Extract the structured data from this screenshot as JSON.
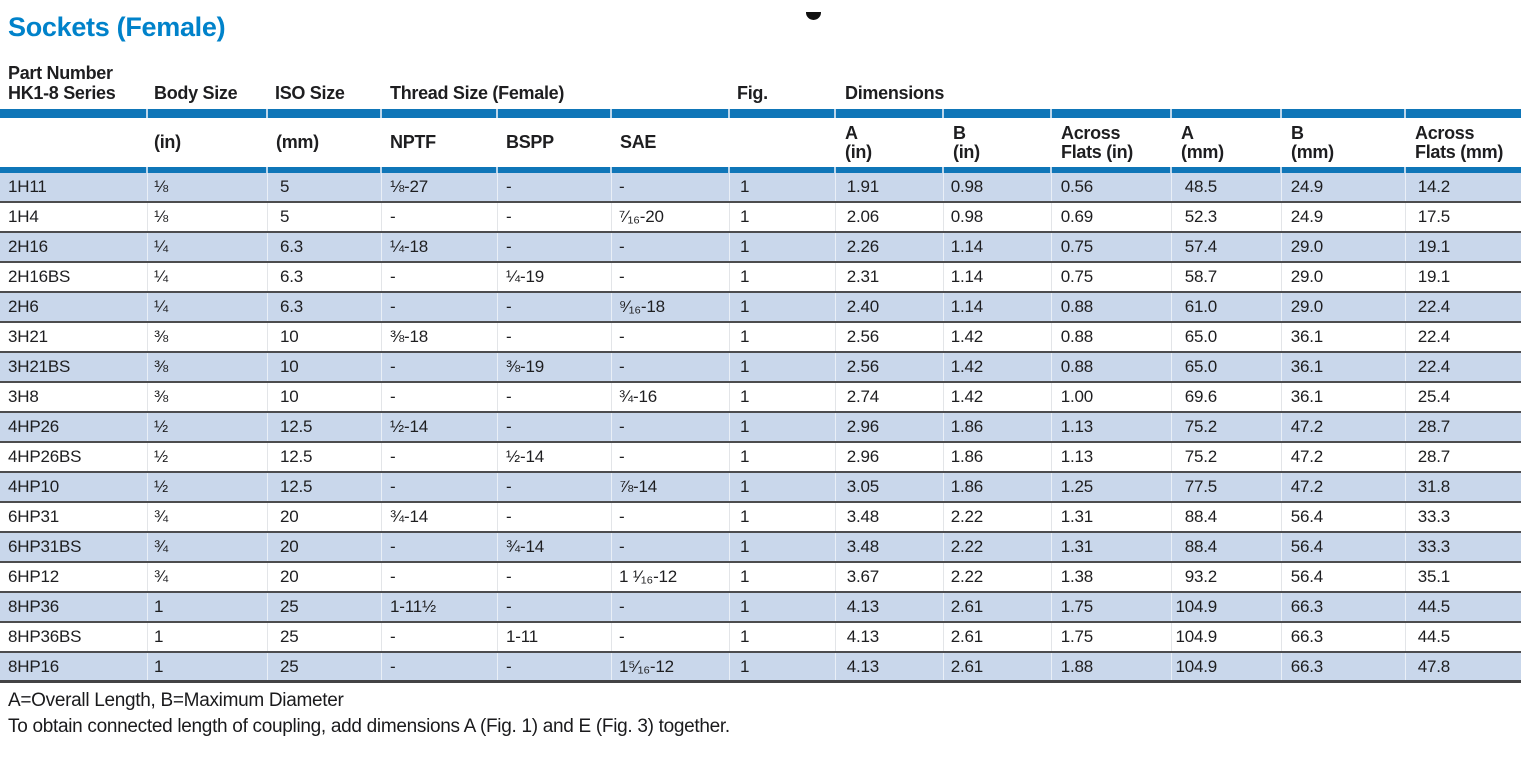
{
  "page": {
    "title": "Sockets (Female)",
    "footnotes": [
      "A=Overall Length, B=Maximum Diameter",
      "To obtain connected length of coupling, add dimensions A (Fig. 1) and E (Fig. 3) together."
    ]
  },
  "colors": {
    "title_blue": "#0082ca",
    "rule_blue": "#0f76b8",
    "row_stripe_blue": "#c9d7eb",
    "row_divider_gray": "#4c4c4e"
  },
  "table": {
    "col_keys": [
      "part-number",
      "body-size",
      "iso-size",
      "nptf",
      "bspp",
      "sae",
      "fig",
      "a-in",
      "b-in",
      "across-flats-in",
      "a-mm",
      "b-mm",
      "across-flats-mm"
    ],
    "col_classes": [
      "c-part",
      "c-body",
      "c-iso",
      "c-nptf",
      "c-bspp",
      "c-sae",
      "c-fig",
      "c-ain",
      "c-bin",
      "c-afin",
      "c-amm",
      "c-bmm",
      "c-afmm"
    ],
    "group_headers": [
      {
        "key": "part-number",
        "label": "Part Number\nHK1-8 Series",
        "span": 1
      },
      {
        "key": "body-size",
        "label": "Body Size",
        "span": 1
      },
      {
        "key": "iso-size",
        "label": "ISO Size",
        "span": 1
      },
      {
        "key": "thread-size",
        "label": "Thread Size (Female)",
        "span": 3
      },
      {
        "key": "fig",
        "label": "Fig.",
        "span": 1
      },
      {
        "key": "dimensions",
        "label": "Dimensions",
        "span": 6
      }
    ],
    "sub_headers": [
      "",
      "(in)",
      "(mm)",
      "NPTF",
      "BSPP",
      "SAE",
      "",
      "A\n(in)",
      "B\n(in)",
      "Across\nFlats (in)",
      "A\n(mm)",
      "B\n(mm)",
      "Across\nFlats (mm)"
    ],
    "rows": [
      [
        "1H11",
        "⅛",
        "5",
        "⅛-27",
        "-",
        "-",
        "1",
        "1.91",
        "0.98",
        "0.56",
        "48.5",
        "24.9",
        "14.2"
      ],
      [
        "1H4",
        "⅛",
        "5",
        "-",
        "-",
        "⁷⁄₁₆-20",
        "1",
        "2.06",
        "0.98",
        "0.69",
        "52.3",
        "24.9",
        "17.5"
      ],
      [
        "2H16",
        "¼",
        "6.3",
        "¼-18",
        "-",
        "-",
        "1",
        "2.26",
        "1.14",
        "0.75",
        "57.4",
        "29.0",
        "19.1"
      ],
      [
        "2H16BS",
        "¼",
        "6.3",
        "-",
        "¼-19",
        "-",
        "1",
        "2.31",
        "1.14",
        "0.75",
        "58.7",
        "29.0",
        "19.1"
      ],
      [
        "2H6",
        "¼",
        "6.3",
        "-",
        "-",
        "⁹⁄₁₆-18",
        "1",
        "2.40",
        "1.14",
        "0.88",
        "61.0",
        "29.0",
        "22.4"
      ],
      [
        "3H21",
        "⅜",
        "10",
        "⅜-18",
        "-",
        "-",
        "1",
        "2.56",
        "1.42",
        "0.88",
        "65.0",
        "36.1",
        "22.4"
      ],
      [
        "3H21BS",
        "⅜",
        "10",
        "-",
        "⅜-19",
        "-",
        "1",
        "2.56",
        "1.42",
        "0.88",
        "65.0",
        "36.1",
        "22.4"
      ],
      [
        "3H8",
        "⅜",
        "10",
        "-",
        "-",
        "¾-16",
        "1",
        "2.74",
        "1.42",
        "1.00",
        "69.6",
        "36.1",
        "25.4"
      ],
      [
        "4HP26",
        "½",
        "12.5",
        "½-14",
        "-",
        "-",
        "1",
        "2.96",
        "1.86",
        "1.13",
        "75.2",
        "47.2",
        "28.7"
      ],
      [
        "4HP26BS",
        "½",
        "12.5",
        "-",
        "½-14",
        "-",
        "1",
        "2.96",
        "1.86",
        "1.13",
        "75.2",
        "47.2",
        "28.7"
      ],
      [
        "4HP10",
        "½",
        "12.5",
        "-",
        "-",
        "⅞-14",
        "1",
        "3.05",
        "1.86",
        "1.25",
        "77.5",
        "47.2",
        "31.8"
      ],
      [
        "6HP31",
        "¾",
        "20",
        "¾-14",
        "-",
        "-",
        "1",
        "3.48",
        "2.22",
        "1.31",
        "88.4",
        "56.4",
        "33.3"
      ],
      [
        "6HP31BS",
        "¾",
        "20",
        "-",
        "¾-14",
        "-",
        "1",
        "3.48",
        "2.22",
        "1.31",
        "88.4",
        "56.4",
        "33.3"
      ],
      [
        "6HP12",
        "¾",
        "20",
        "-",
        "-",
        "1 ¹⁄₁₆-12",
        "1",
        "3.67",
        "2.22",
        "1.38",
        "93.2",
        "56.4",
        "35.1"
      ],
      [
        "8HP36",
        "1",
        "25",
        "1-11½",
        "-",
        "-",
        "1",
        "4.13",
        "2.61",
        "1.75",
        "104.9",
        "66.3",
        "44.5"
      ],
      [
        "8HP36BS",
        "1",
        "25",
        "-",
        "1-11",
        "-",
        "1",
        "4.13",
        "2.61",
        "1.75",
        "104.9",
        "66.3",
        "44.5"
      ],
      [
        "8HP16",
        "1",
        "25",
        "-",
        "-",
        "1⁵⁄₁₆-12",
        "1",
        "4.13",
        "2.61",
        "1.88",
        "104.9",
        "66.3",
        "47.8"
      ]
    ]
  }
}
